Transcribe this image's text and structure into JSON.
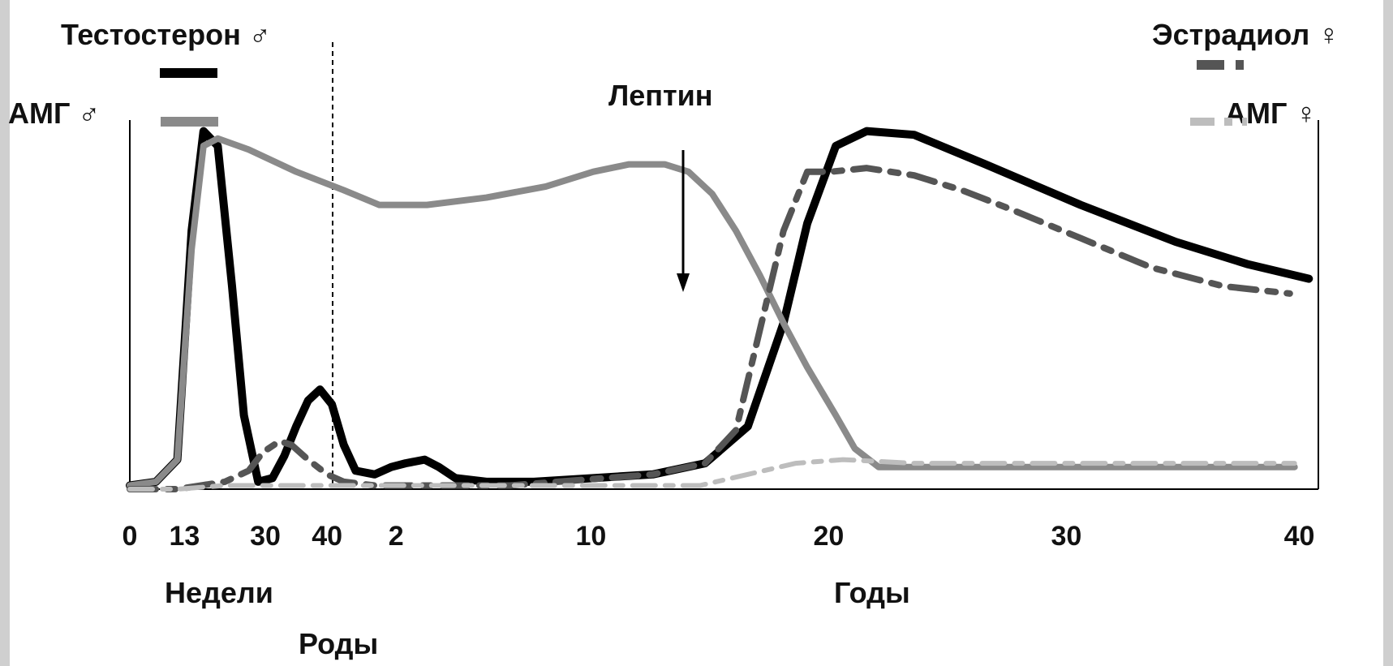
{
  "chart_data": {
    "type": "line",
    "title": "",
    "xlabel": "",
    "ylabel": "",
    "legend": {
      "testosterone": "Тестостерон ♂",
      "amh_male": "АМГ ♂",
      "estradiol": "Эстрадиол ♀",
      "amh_female": "АМГ ♀"
    },
    "annotations": {
      "leptin": "Лептин",
      "weeks": "Недели",
      "years": "Годы",
      "birth": "Роды"
    },
    "x_ticks": [
      "0",
      "13",
      "30",
      "40",
      "2",
      "10",
      "20",
      "30",
      "40"
    ],
    "grid": false,
    "colors": {
      "testosterone": "#000000",
      "amh_male": "#8a8a8a",
      "estradiol": "#555555",
      "amh_female": "#bdbdbd"
    },
    "series": [
      {
        "name": "Тестостерон ♂",
        "points": [
          [
            0,
            0.01
          ],
          [
            1.1,
            0.02
          ],
          [
            2.0,
            0.08
          ],
          [
            2.6,
            0.7
          ],
          [
            3.1,
            0.97
          ],
          [
            3.7,
            0.93
          ],
          [
            4.3,
            0.55
          ],
          [
            4.8,
            0.2
          ],
          [
            5.4,
            0.02
          ],
          [
            6.0,
            0.03
          ],
          [
            6.5,
            0.09
          ],
          [
            7.0,
            0.17
          ],
          [
            7.5,
            0.24
          ],
          [
            8.0,
            0.27
          ],
          [
            8.5,
            0.23
          ],
          [
            9.0,
            0.12
          ],
          [
            9.5,
            0.05
          ],
          [
            10.3,
            0.04
          ],
          [
            11.0,
            0.06
          ],
          [
            11.6,
            0.07
          ],
          [
            12.4,
            0.08
          ],
          [
            13.0,
            0.06
          ],
          [
            13.7,
            0.03
          ],
          [
            15.0,
            0.02
          ],
          [
            17.0,
            0.02
          ],
          [
            19.5,
            0.03
          ],
          [
            22.0,
            0.04
          ],
          [
            24.2,
            0.07
          ],
          [
            26.0,
            0.17
          ],
          [
            27.5,
            0.45
          ],
          [
            28.5,
            0.72
          ],
          [
            29.7,
            0.93
          ],
          [
            31.0,
            0.97
          ],
          [
            33.0,
            0.96
          ],
          [
            36.0,
            0.88
          ],
          [
            40.0,
            0.77
          ],
          [
            44.0,
            0.67
          ],
          [
            47.0,
            0.61
          ],
          [
            49.6,
            0.57
          ]
        ]
      },
      {
        "name": "АМГ ♂",
        "points": [
          [
            0,
            0.01
          ],
          [
            1.1,
            0.02
          ],
          [
            2.0,
            0.08
          ],
          [
            2.6,
            0.65
          ],
          [
            3.1,
            0.93
          ],
          [
            3.7,
            0.95
          ],
          [
            5.0,
            0.92
          ],
          [
            7.0,
            0.86
          ],
          [
            9.0,
            0.81
          ],
          [
            10.5,
            0.77
          ],
          [
            12.5,
            0.77
          ],
          [
            15.0,
            0.79
          ],
          [
            17.5,
            0.82
          ],
          [
            19.5,
            0.86
          ],
          [
            21.0,
            0.88
          ],
          [
            22.5,
            0.88
          ],
          [
            23.5,
            0.86
          ],
          [
            24.5,
            0.8
          ],
          [
            25.5,
            0.7
          ],
          [
            26.5,
            0.58
          ],
          [
            27.5,
            0.45
          ],
          [
            28.5,
            0.33
          ],
          [
            29.7,
            0.2
          ],
          [
            30.5,
            0.11
          ],
          [
            31.5,
            0.06
          ],
          [
            34.0,
            0.06
          ],
          [
            38.0,
            0.06
          ],
          [
            42.0,
            0.06
          ],
          [
            46.0,
            0.06
          ],
          [
            49.0,
            0.06
          ]
        ]
      },
      {
        "name": "Эстрадиол ♀",
        "points": [
          [
            0,
            0.0
          ],
          [
            2.0,
            0.0
          ],
          [
            3.0,
            0.01
          ],
          [
            4.0,
            0.02
          ],
          [
            5.0,
            0.05
          ],
          [
            5.6,
            0.1
          ],
          [
            6.3,
            0.13
          ],
          [
            6.8,
            0.12
          ],
          [
            7.5,
            0.08
          ],
          [
            8.3,
            0.04
          ],
          [
            9.0,
            0.02
          ],
          [
            10.3,
            0.01
          ],
          [
            12.0,
            0.01
          ],
          [
            14.0,
            0.01
          ],
          [
            16.0,
            0.01
          ],
          [
            18.0,
            0.02
          ],
          [
            20.0,
            0.03
          ],
          [
            22.0,
            0.04
          ],
          [
            24.2,
            0.07
          ],
          [
            25.5,
            0.16
          ],
          [
            26.5,
            0.43
          ],
          [
            27.5,
            0.7
          ],
          [
            28.5,
            0.86
          ],
          [
            29.5,
            0.86
          ],
          [
            31.0,
            0.87
          ],
          [
            33.0,
            0.85
          ],
          [
            35.0,
            0.81
          ],
          [
            37.0,
            0.76
          ],
          [
            40.0,
            0.68
          ],
          [
            43.0,
            0.6
          ],
          [
            46.0,
            0.55
          ],
          [
            48.8,
            0.53
          ]
        ]
      },
      {
        "name": "АМГ ♀",
        "points": [
          [
            0,
            0.0
          ],
          [
            2.0,
            0.0
          ],
          [
            4.0,
            0.01
          ],
          [
            8.0,
            0.01
          ],
          [
            12.0,
            0.01
          ],
          [
            16.0,
            0.01
          ],
          [
            20.0,
            0.01
          ],
          [
            24.0,
            0.01
          ],
          [
            26.0,
            0.04
          ],
          [
            28.0,
            0.07
          ],
          [
            30.0,
            0.08
          ],
          [
            33.0,
            0.07
          ],
          [
            38.0,
            0.07
          ],
          [
            44.0,
            0.07
          ],
          [
            49.0,
            0.07
          ]
        ]
      }
    ]
  }
}
